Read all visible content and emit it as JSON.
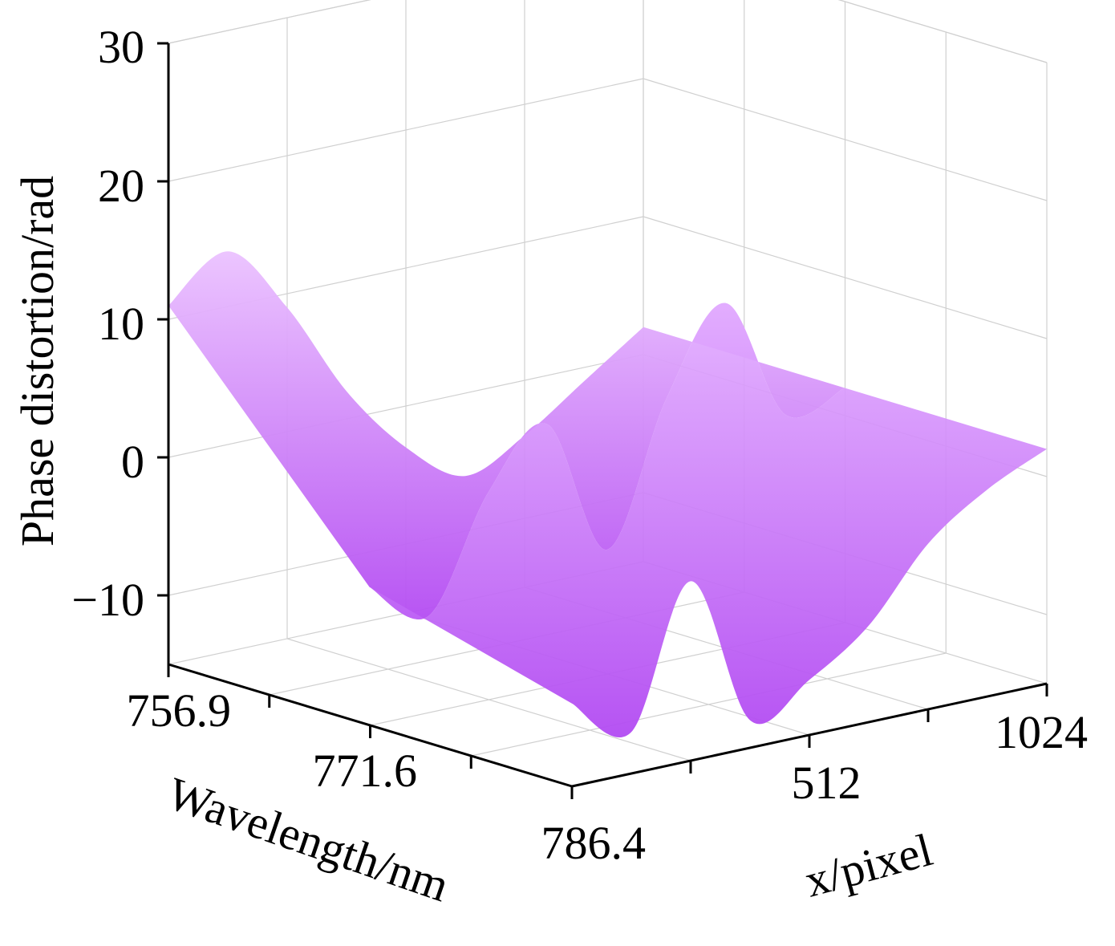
{
  "chart_data": {
    "type": "surface",
    "title": "",
    "zlabel": "Phase distortion/rad",
    "xlabel": "x/pixel",
    "ylabel": "Wavelength/nm",
    "z_ticks": [
      "30",
      "20",
      "10",
      "0",
      "−10"
    ],
    "z_tick_values": [
      30,
      20,
      10,
      0,
      -10
    ],
    "z_range": [
      -15,
      30
    ],
    "wavelength_ticks": [
      "756.9",
      "771.6",
      "786.4"
    ],
    "wavelength_range": [
      756.9,
      786.4
    ],
    "pixel_ticks": [
      "512",
      "1024"
    ],
    "pixel_range": [
      0,
      1024
    ],
    "grid": true,
    "colors": {
      "surface_light": "#e6b8ff",
      "surface_dark": "#b04af0",
      "grid": "#d0d0d0",
      "axis": "#000000"
    },
    "series": [
      {
        "wavelength": 756.9,
        "pixel": [
          0,
          128,
          256,
          384,
          512,
          640,
          768,
          896,
          1024
        ],
        "z": [
          11,
          14,
          9,
          2,
          -3,
          -6,
          -4,
          -1,
          2
        ]
      },
      {
        "wavelength": 771.6,
        "pixel": [
          0,
          128,
          256,
          384,
          512,
          640,
          768,
          896,
          1024
        ],
        "z": [
          -5,
          -8,
          0,
          4,
          -6,
          4,
          10,
          1,
          2
        ]
      },
      {
        "wavelength": 786.4,
        "pixel": [
          0,
          128,
          256,
          384,
          512,
          640,
          768,
          896,
          1024
        ],
        "z": [
          -9,
          -12,
          -2,
          -13,
          -11,
          -8,
          -3,
          0,
          2
        ]
      }
    ]
  }
}
